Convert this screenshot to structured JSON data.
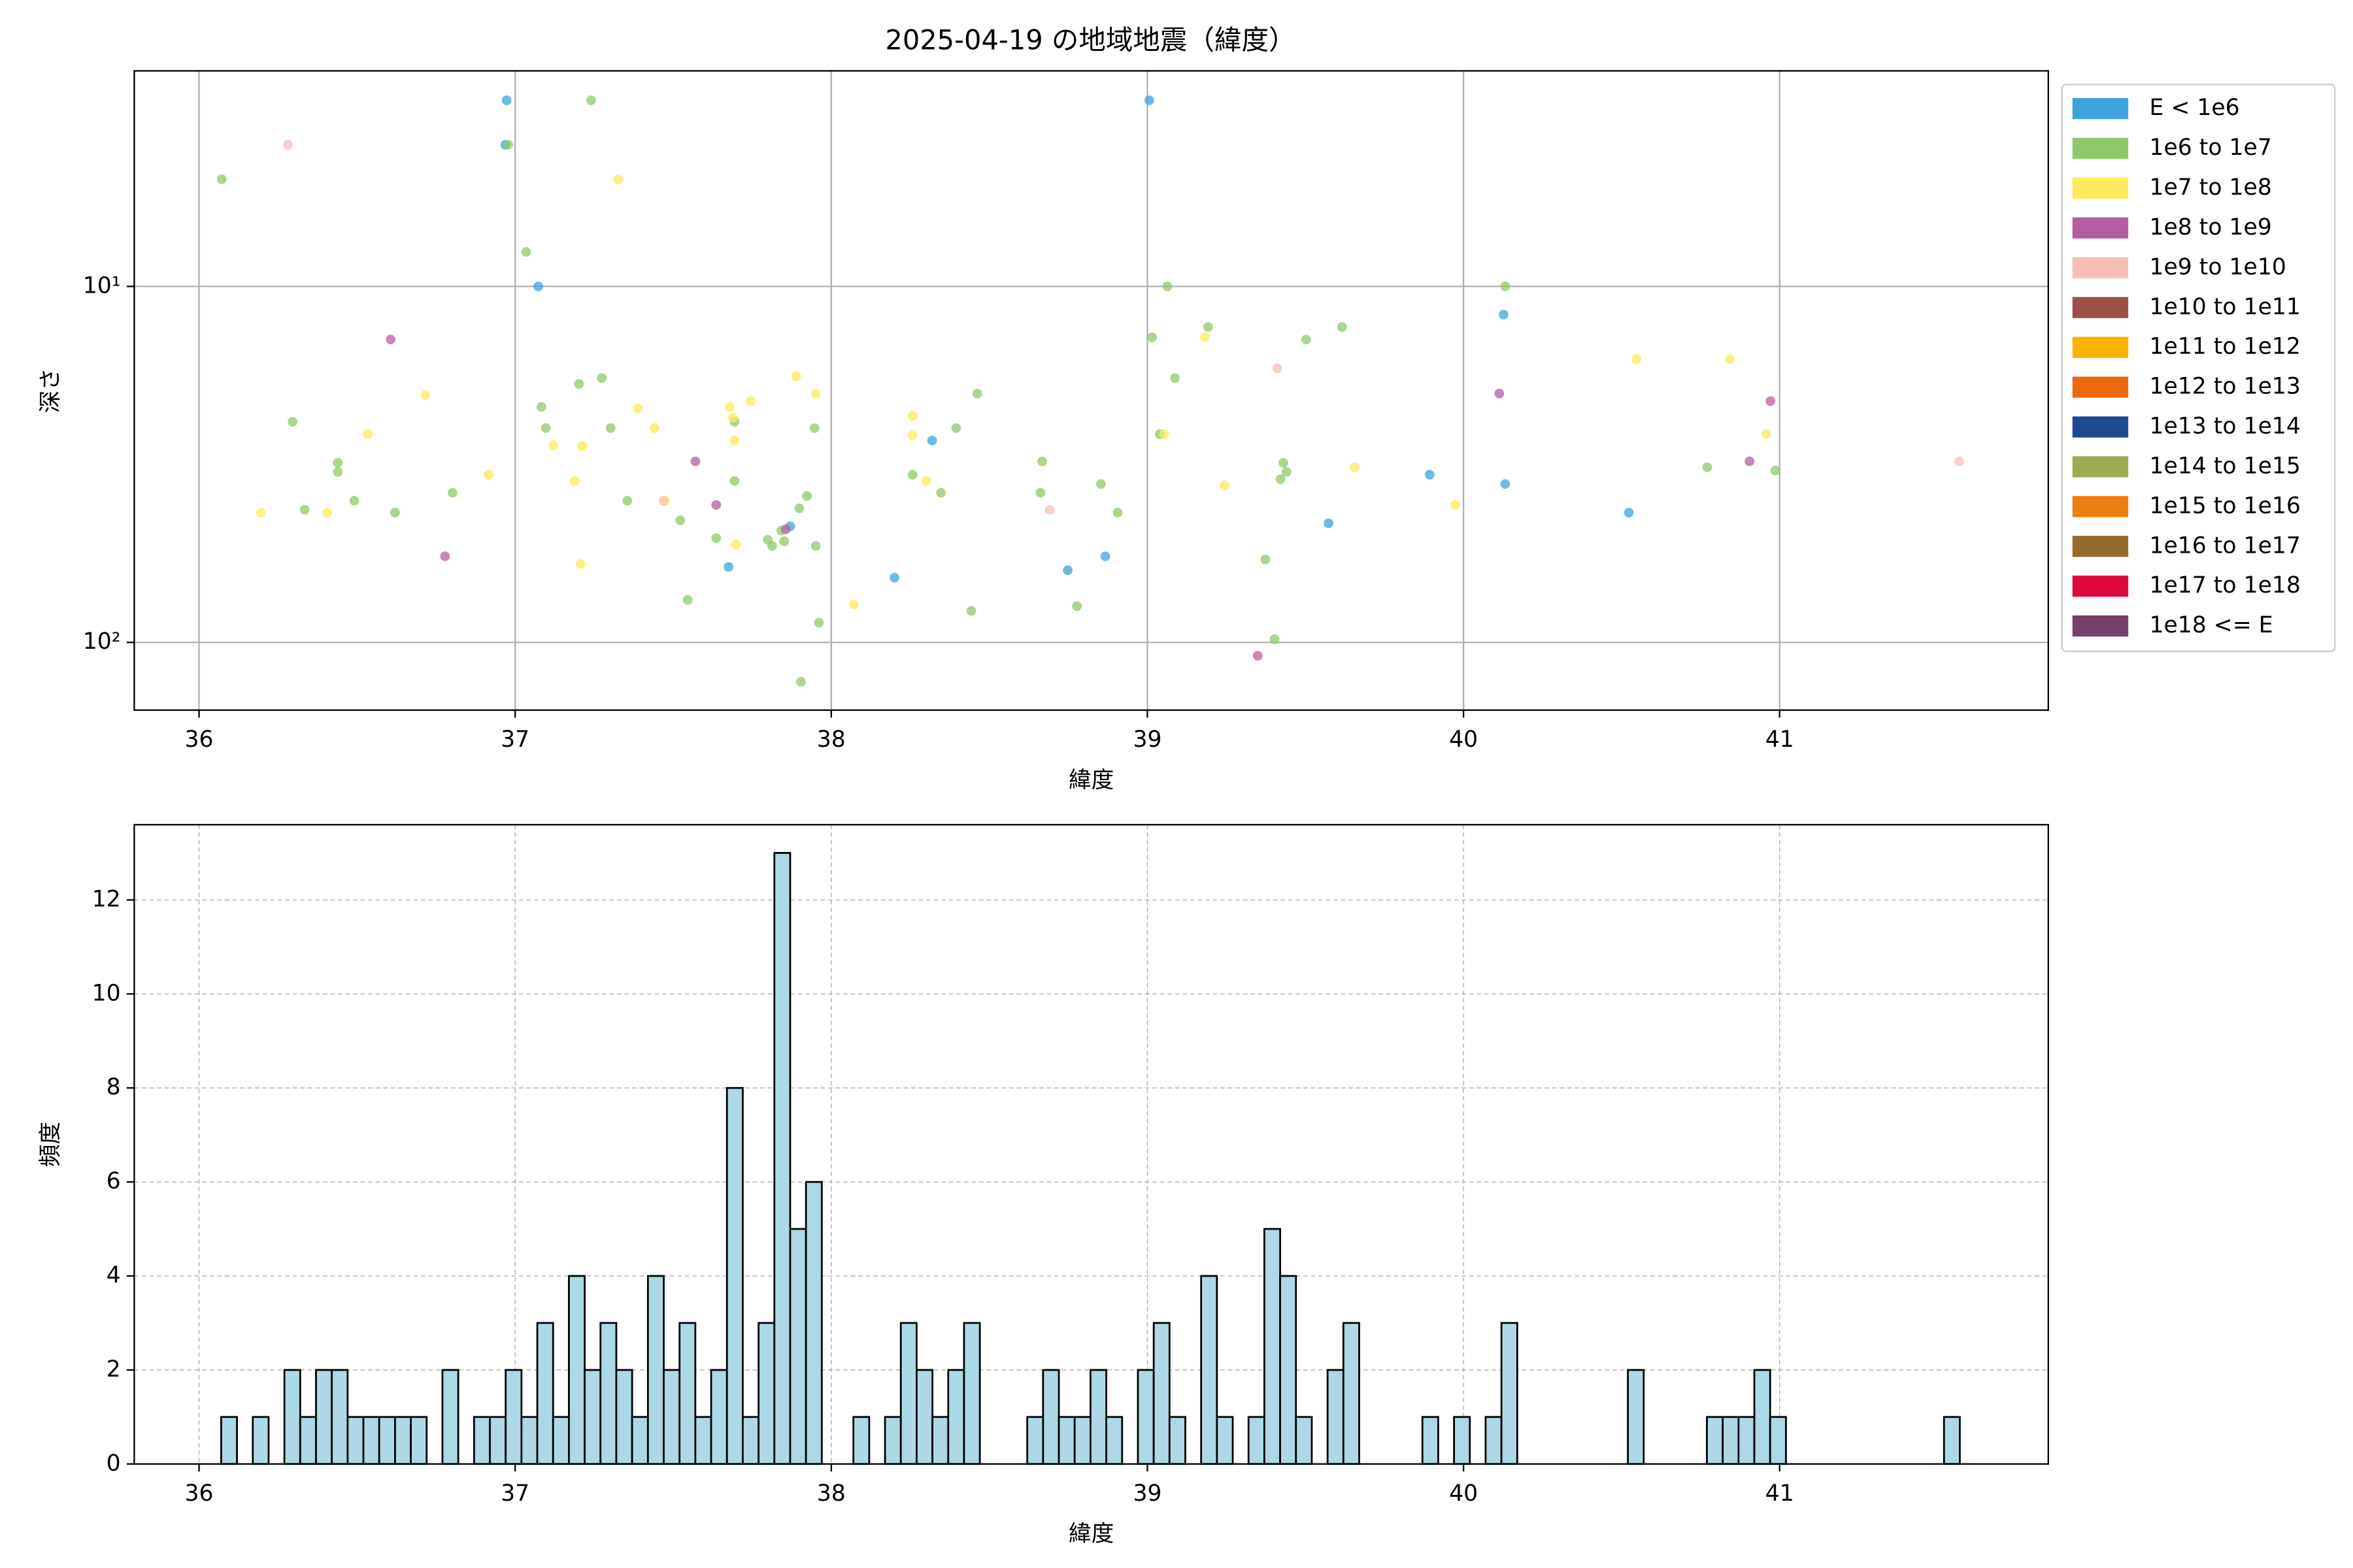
{
  "chart_data": [
    {
      "type": "scatter",
      "title": "2025-04-19 の地域地震（緯度）",
      "xlabel": "緯度",
      "ylabel": "深さ",
      "yscale": "log",
      "y_inverted": true,
      "xlim": [
        35.795,
        41.85
      ],
      "ylim": [
        2.48,
        155
      ],
      "xticks": [
        36,
        37,
        38,
        39,
        40,
        41
      ],
      "yticks": [
        {
          "value": 10,
          "label": "10¹"
        },
        {
          "value": 100,
          "label": "10²"
        }
      ],
      "grid": true,
      "grid_linestyle": "solid",
      "legend": "outside right",
      "series": [
        {
          "name": "E < 1e6",
          "color": "#3ea3dc",
          "x": [
            36.973,
            36.969,
            37.073,
            39.006,
            40.127,
            40.132,
            39.893,
            39.573,
            40.523,
            38.319,
            38.2,
            37.675,
            37.87,
            38.748,
            38.867
          ],
          "values": [
            3.0,
            4.0,
            10,
            3.0,
            12.0,
            35.9,
            33.8,
            46.3,
            43.2,
            27.1,
            65.8,
            61.4,
            47.2,
            62.7,
            57.3
          ]
        },
        {
          "name": "1e6 to 1e7",
          "color": "#8dc86a",
          "x": [
            36.072,
            36.978,
            37.24,
            37.035,
            39.063,
            40.132,
            39.015,
            39.192,
            39.616,
            39.502,
            36.296,
            36.439,
            36.439,
            36.334,
            36.491,
            36.62,
            36.802,
            37.083,
            37.097,
            37.202,
            37.274,
            37.302,
            37.355,
            37.522,
            37.636,
            37.694,
            37.694,
            37.799,
            37.813,
            37.842,
            37.851,
            37.899,
            37.923,
            37.947,
            37.951,
            37.961,
            37.904,
            37.546,
            38.257,
            38.347,
            38.395,
            38.462,
            38.443,
            38.777,
            38.853,
            38.906,
            38.667,
            38.662,
            39.087,
            39.039,
            39.373,
            39.402,
            39.421,
            39.43,
            39.44,
            40.771,
            40.986
          ],
          "values": [
            5.0,
            4.0,
            3.0,
            8.0,
            10,
            10,
            13.9,
            13.0,
            13.0,
            14.1,
            24.0,
            31.3,
            33.2,
            42.4,
            40.0,
            43.2,
            38.0,
            21.8,
            25.0,
            18.8,
            18.1,
            25.0,
            40.0,
            45.4,
            51.0,
            35.2,
            24.0,
            51.5,
            53.6,
            48.5,
            52.0,
            42.0,
            38.8,
            25.0,
            53.6,
            88,
            129,
            76,
            33.8,
            38.0,
            25.0,
            20.0,
            81.5,
            79.1,
            35.9,
            43.2,
            31.0,
            38.0,
            18.1,
            26.0,
            58.5,
            98,
            34.8,
            31.3,
            33.2,
            32.2,
            32.9
          ]
        },
        {
          "name": "1e7 to 1e8",
          "color": "#fde95a",
          "x": [
            37.326,
            36.196,
            36.406,
            36.534,
            36.716,
            36.916,
            37.121,
            37.188,
            37.212,
            37.207,
            37.388,
            37.441,
            37.474,
            37.679,
            37.689,
            37.694,
            37.698,
            37.746,
            37.889,
            37.951,
            38.071,
            38.257,
            38.257,
            38.3,
            39.182,
            39.053,
            39.244,
            39.655,
            39.974,
            40.547,
            40.843,
            40.957
          ],
          "values": [
            5.0,
            43.2,
            43.2,
            26.0,
            20.2,
            33.8,
            27.9,
            35.2,
            28.1,
            60.2,
            22.0,
            25.0,
            40.0,
            21.8,
            23.4,
            27.1,
            53.1,
            21.0,
            17.9,
            20.0,
            78.3,
            23.1,
            26.2,
            35.2,
            13.9,
            26.0,
            36.2,
            32.2,
            41.1,
            16.0,
            16.0,
            26.0
          ]
        },
        {
          "name": "1e8 to 1e9",
          "color": "#b55da2",
          "x": [
            36.606,
            36.778,
            37.57,
            37.636,
            40.113,
            40.971,
            40.905,
            39.349,
            37.856
          ],
          "values": [
            14.1,
            57.3,
            31.0,
            41.1,
            20.0,
            21.0,
            31.0,
            109,
            48.1
          ]
        },
        {
          "name": "1e9 to 1e10",
          "color": "#f5bfb8",
          "x": [
            36.281,
            37.469,
            38.691,
            41.568,
            39.411
          ],
          "values": [
            4.0,
            40.0,
            42.4,
            31.0,
            17.0
          ]
        },
        {
          "name": "1e10 to 1e11",
          "color": "#9a5048",
          "x": [],
          "values": []
        },
        {
          "name": "1e11 to 1e12",
          "color": "#f8b400",
          "x": [],
          "values": []
        },
        {
          "name": "1e12 to 1e13",
          "color": "#ec6a0b",
          "x": [],
          "values": []
        },
        {
          "name": "1e13 to 1e14",
          "color": "#1e4a8f",
          "x": [],
          "values": []
        },
        {
          "name": "1e14 to 1e15",
          "color": "#9bad4f",
          "x": [],
          "values": []
        },
        {
          "name": "1e15 to 1e16",
          "color": "#ee7e0f",
          "x": [],
          "values": []
        },
        {
          "name": "1e16 to 1e17",
          "color": "#956b2b",
          "x": [],
          "values": []
        },
        {
          "name": "1e17 to 1e18",
          "color": "#dc0a3c",
          "x": [],
          "values": []
        },
        {
          "name": "1e18 <= E",
          "color": "#783f6b",
          "x": [],
          "values": []
        }
      ]
    },
    {
      "type": "histogram",
      "xlabel": "緯度",
      "ylabel": "頻度",
      "color": "#add8e6",
      "edgecolor": "#000000",
      "xlim": [
        35.795,
        41.85
      ],
      "ylim": [
        0,
        13.6
      ],
      "xticks": [
        36,
        37,
        38,
        39,
        40,
        41
      ],
      "yticks": [
        0,
        2,
        4,
        6,
        8,
        10,
        12
      ],
      "grid": true,
      "grid_linestyle": "dashed",
      "bins": [
        36.07,
        36.12,
        36.17,
        36.22,
        36.27,
        36.32,
        36.37,
        36.42,
        36.47,
        36.52,
        36.57,
        36.62,
        36.67,
        36.72,
        36.77,
        36.82,
        36.87,
        36.92,
        36.97,
        37.02,
        37.07,
        37.12,
        37.17,
        37.22,
        37.27,
        37.32,
        37.37,
        37.42,
        37.47,
        37.52,
        37.57,
        37.62,
        37.67,
        37.72,
        37.77,
        37.82,
        37.87,
        37.92,
        37.97,
        38.02,
        38.07,
        38.12,
        38.17,
        38.22,
        38.27,
        38.32,
        38.37,
        38.42,
        38.47,
        38.52,
        38.57,
        38.62,
        38.67,
        38.72,
        38.77,
        38.82,
        38.87,
        38.92,
        38.97,
        39.02,
        39.07,
        39.12,
        39.17,
        39.22,
        39.27,
        39.32,
        39.37,
        39.42,
        39.47,
        39.52,
        39.57,
        39.62,
        39.67,
        39.72,
        39.77,
        39.82,
        39.87,
        39.92,
        39.97,
        40.02,
        40.07,
        40.12,
        40.17,
        40.22,
        40.27,
        40.32,
        40.37,
        40.42,
        40.47,
        40.52,
        40.57,
        40.62,
        40.67,
        40.72,
        40.77,
        40.82,
        40.87,
        40.92,
        40.97,
        41.02,
        41.07,
        41.12,
        41.17,
        41.22,
        41.27,
        41.32,
        41.37,
        41.42,
        41.47,
        41.52,
        41.57
      ],
      "values": [
        1,
        0,
        1,
        0,
        2,
        1,
        2,
        2,
        1,
        1,
        1,
        1,
        1,
        0,
        2,
        0,
        1,
        1,
        2,
        1,
        3,
        1,
        4,
        2,
        3,
        2,
        1,
        4,
        2,
        3,
        1,
        2,
        8,
        1,
        3,
        13,
        5,
        6,
        0,
        0,
        1,
        0,
        1,
        3,
        2,
        1,
        2,
        3,
        0,
        0,
        0,
        1,
        2,
        1,
        1,
        2,
        1,
        0,
        2,
        3,
        1,
        0,
        4,
        1,
        0,
        1,
        5,
        4,
        1,
        0,
        2,
        3,
        0,
        0,
        0,
        0,
        1,
        0,
        1,
        0,
        1,
        3,
        0,
        0,
        0,
        0,
        0,
        0,
        0,
        2,
        0,
        0,
        0,
        0,
        1,
        1,
        1,
        2,
        1,
        0,
        0,
        0,
        0,
        0,
        0,
        0,
        0,
        0,
        0,
        1
      ]
    }
  ]
}
